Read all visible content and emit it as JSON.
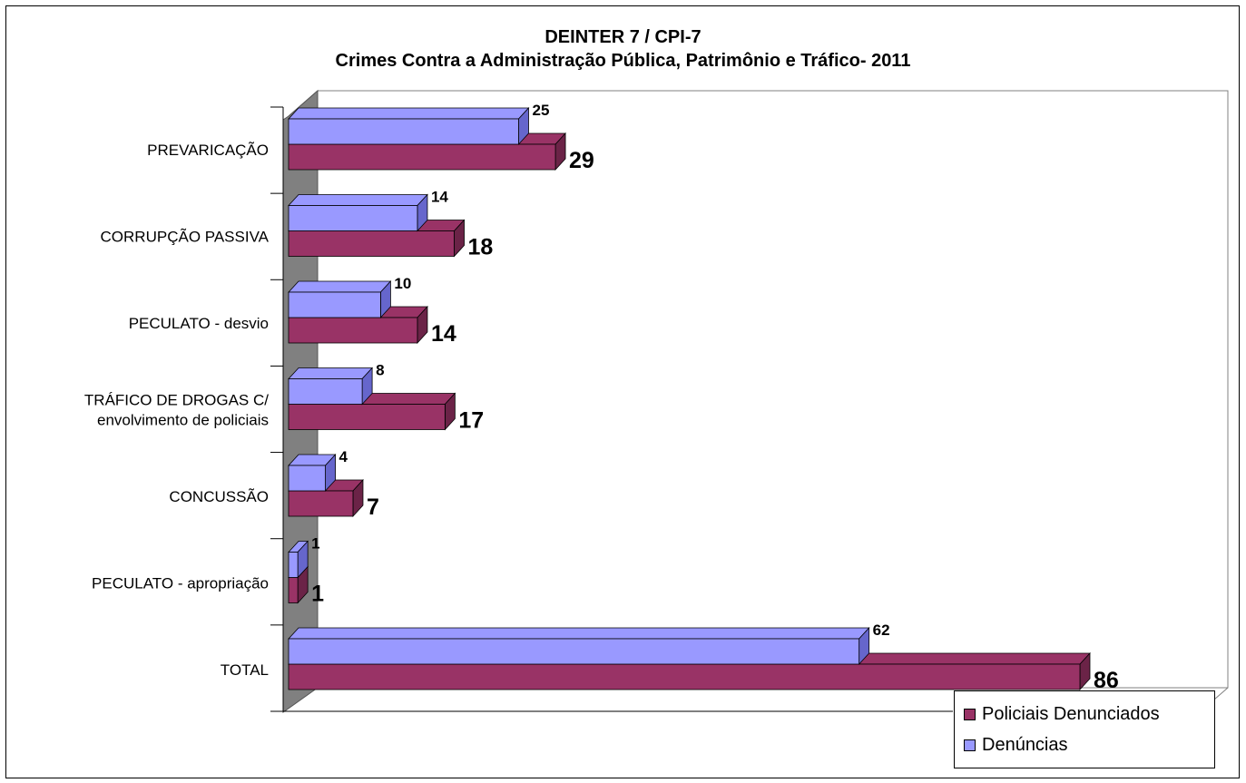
{
  "chart_data": {
    "type": "bar",
    "orientation": "horizontal",
    "three_d": true,
    "title": "DEINTER 7 / CPI-7",
    "subtitle": "Crimes Contra a Administração Pública, Patrimônio e Tráfico- 2011",
    "categories": [
      [
        "PREVARICAÇÃO"
      ],
      [
        "CORRUPÇÃO PASSIVA"
      ],
      [
        "PECULATO - desvio"
      ],
      [
        "TRÁFICO DE DROGAS C/",
        "envolvimento de policiais"
      ],
      [
        "CONCUSSÃO"
      ],
      [
        "PECULATO - apropriação"
      ],
      [
        "TOTAL"
      ]
    ],
    "series": [
      {
        "name": "Denúncias",
        "values": [
          25,
          14,
          10,
          8,
          4,
          1,
          62
        ],
        "color": "#9999ff",
        "dark": "#6666cc"
      },
      {
        "name": "Policiais Denunciados",
        "values": [
          29,
          18,
          14,
          17,
          7,
          1,
          86
        ],
        "color": "#993366",
        "dark": "#6b2347"
      }
    ],
    "legend_order": [
      1,
      0
    ],
    "xlim": [
      0,
      90
    ],
    "grid": false,
    "legend_position": "bottom-right",
    "wall_color": "#808080"
  }
}
